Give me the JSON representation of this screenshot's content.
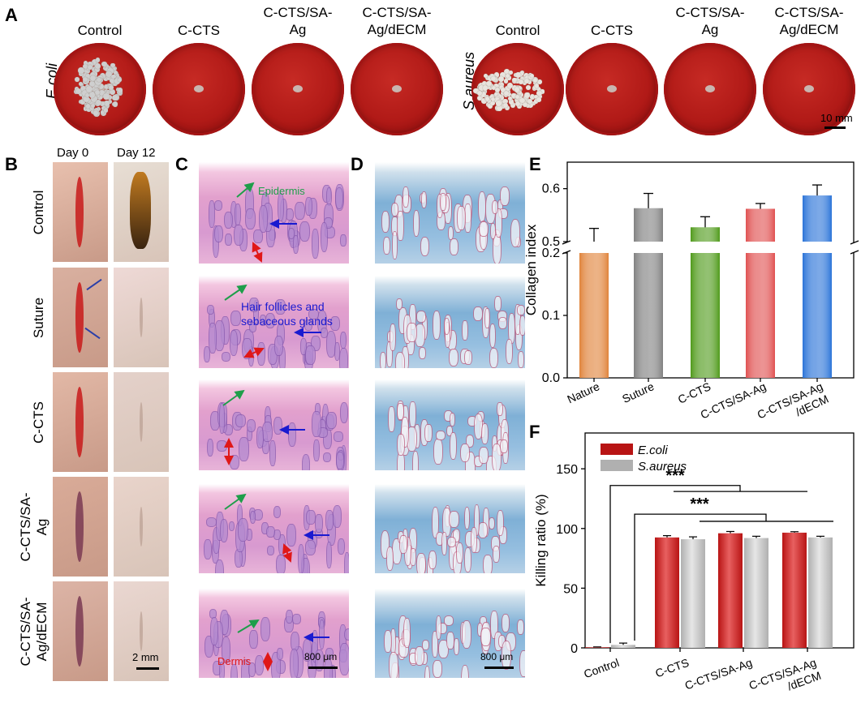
{
  "panels": {
    "a": "A",
    "b": "B",
    "c": "C",
    "d": "D",
    "e": "E",
    "f": "F"
  },
  "panel_a": {
    "columns": [
      {
        "l1": "Control",
        "l2": ""
      },
      {
        "l1": "C-CTS",
        "l2": ""
      },
      {
        "l1": "C-CTS/SA-",
        "l2": "Ag"
      },
      {
        "l1": "C-CTS/SA-",
        "l2": "Ag/dECM"
      },
      {
        "l1": "Control",
        "l2": ""
      },
      {
        "l1": "C-CTS",
        "l2": ""
      },
      {
        "l1": "C-CTS/SA-",
        "l2": "Ag"
      },
      {
        "l1": "C-CTS/SA-",
        "l2": "Ag/dECM"
      }
    ],
    "row_label_left": "E.coli",
    "row_label_right": "S.aureus",
    "scale_bar": "10 mm"
  },
  "panel_b": {
    "day0": "Day 0",
    "day12": "Day 12",
    "groups": [
      {
        "l1": "Control",
        "l2": ""
      },
      {
        "l1": "Suture",
        "l2": ""
      },
      {
        "l1": "C-CTS",
        "l2": ""
      },
      {
        "l1": "C-CTS/SA-",
        "l2": "Ag"
      },
      {
        "l1": "C-CTS/SA-",
        "l2": "Ag/dECM"
      }
    ],
    "scale_bar": "2 mm"
  },
  "panel_c": {
    "epidermis": "Epidermis",
    "hair_line1": "Hair follicles and",
    "hair_line2": "sebaceous glands",
    "dermis": "Dermis",
    "scale_bar": "800 μm"
  },
  "panel_d": {
    "scale_bar": "800 μm"
  },
  "colors": {
    "nature": "#e0833a",
    "suture": "#808080",
    "c_cts": "#4f9a1a",
    "c_cts_sa_ag": "#e05050",
    "c_cts_sa_ag_decm": "#2a73d8",
    "ecoli": "#b81414",
    "saureus": "#b0b0b0",
    "epidermis_arrow": "#1e9e4a",
    "follicle_arrow": "#1a1ad0",
    "dermis_arrow": "#e01818"
  },
  "chart_data": [
    {
      "type": "bar",
      "categories": [
        "Nature",
        "Suture",
        "C-CTS",
        "C-CTS/SA-Ag",
        "C-CTS/SA-Ag /dECM"
      ],
      "values": [
        0.5,
        0.563,
        0.527,
        0.562,
        0.587
      ],
      "errors": [
        0.025,
        0.028,
        0.02,
        0.01,
        0.02
      ],
      "ylabel": "Collagen index",
      "y_ticks": [
        "0.0",
        "0.1",
        "0.2",
        "0.3",
        "0.4",
        "0.5",
        "0.6"
      ],
      "axis_break": [
        0.2,
        0.5
      ],
      "ylim": [
        0.0,
        0.65
      ]
    },
    {
      "type": "bar",
      "categories": [
        "Control",
        "C-CTS",
        "C-CTS/SA-Ag",
        "C-CTS/SA-Ag /dECM"
      ],
      "series": [
        {
          "name": "E.coli",
          "values": [
            0.5,
            92.5,
            96,
            96.5
          ],
          "errors": [
            0.3,
            1.5,
            1.5,
            0.8
          ]
        },
        {
          "name": "S.aureus",
          "values": [
            2.5,
            91,
            92,
            92.5
          ],
          "errors": [
            1.5,
            2,
            1.5,
            1
          ]
        }
      ],
      "ylabel": "Killing ratio (%)",
      "y_ticks": [
        "0",
        "50",
        "100",
        "150"
      ],
      "ylim": [
        0,
        180
      ],
      "significance": "***"
    }
  ]
}
